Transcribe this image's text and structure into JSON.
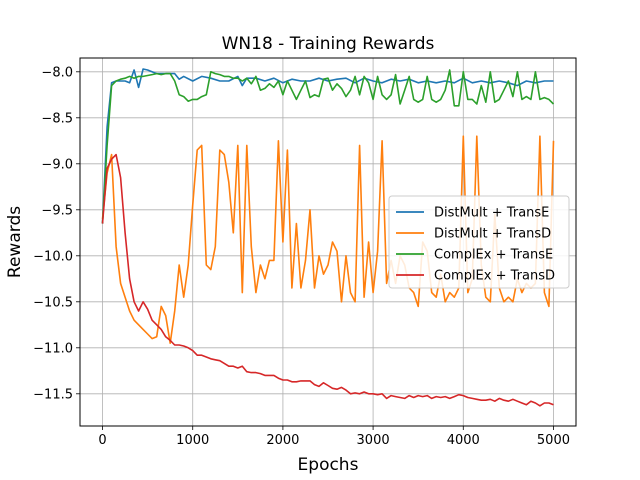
{
  "chart_data": {
    "type": "line",
    "title": "WN18 - Training Rewards",
    "xlabel": "Epochs",
    "ylabel": "Rewards",
    "xlim": [
      -250,
      5250
    ],
    "ylim": [
      -11.85,
      -7.85
    ],
    "xticks": [
      0,
      1000,
      2000,
      3000,
      4000,
      5000
    ],
    "xtick_labels": [
      "0",
      "1000",
      "2000",
      "3000",
      "4000",
      "5000"
    ],
    "yticks": [
      -8.0,
      -8.5,
      -9.0,
      -9.5,
      -10.0,
      -10.5,
      -11.0,
      -11.5
    ],
    "ytick_labels": [
      "−8.0",
      "−8.5",
      "−9.0",
      "−9.5",
      "−10.0",
      "−10.5",
      "−11.0",
      "−11.5"
    ],
    "grid": true,
    "legend_position": "center-right",
    "series": [
      {
        "name": "DistMult + TransE",
        "color": "#1f77b4",
        "x": [
          0,
          50,
          100,
          150,
          200,
          250,
          300,
          350,
          400,
          450,
          500,
          600,
          700,
          800,
          850,
          900,
          1000,
          1100,
          1200,
          1300,
          1400,
          1500,
          1550,
          1600,
          1700,
          1800,
          1900,
          2000,
          2100,
          2200,
          2300,
          2400,
          2500,
          2600,
          2700,
          2800,
          2900,
          3000,
          3100,
          3200,
          3300,
          3400,
          3500,
          3600,
          3700,
          3800,
          3900,
          4000,
          4100,
          4200,
          4300,
          4400,
          4500,
          4600,
          4700,
          4800,
          4900,
          5000
        ],
        "y": [
          -9.65,
          -8.6,
          -8.12,
          -8.1,
          -8.1,
          -8.1,
          -8.12,
          -7.98,
          -8.17,
          -7.97,
          -7.98,
          -8.02,
          -8.02,
          -8.02,
          -8.08,
          -8.05,
          -8.1,
          -8.05,
          -8.07,
          -8.1,
          -8.1,
          -8.05,
          -8.15,
          -8.07,
          -8.07,
          -8.1,
          -8.07,
          -8.12,
          -8.08,
          -8.1,
          -8.1,
          -8.07,
          -8.1,
          -8.08,
          -8.07,
          -8.12,
          -8.07,
          -8.1,
          -8.12,
          -8.08,
          -8.1,
          -8.08,
          -8.12,
          -8.1,
          -8.12,
          -8.1,
          -8.12,
          -8.07,
          -8.12,
          -8.1,
          -8.12,
          -8.1,
          -8.12,
          -8.15,
          -8.1,
          -8.12,
          -8.1,
          -8.1
        ]
      },
      {
        "name": "DistMult + TransD",
        "color": "#ff7f0e",
        "x": [
          0,
          50,
          100,
          150,
          200,
          250,
          300,
          350,
          400,
          450,
          500,
          550,
          600,
          650,
          700,
          750,
          800,
          850,
          900,
          950,
          1000,
          1050,
          1100,
          1150,
          1200,
          1250,
          1300,
          1350,
          1400,
          1450,
          1500,
          1550,
          1600,
          1650,
          1700,
          1750,
          1800,
          1850,
          1900,
          1950,
          2000,
          2050,
          2100,
          2150,
          2200,
          2250,
          2300,
          2350,
          2400,
          2450,
          2500,
          2550,
          2600,
          2650,
          2700,
          2750,
          2800,
          2850,
          2900,
          2950,
          3000,
          3050,
          3100,
          3150,
          3200,
          3250,
          3300,
          3350,
          3400,
          3450,
          3500,
          3550,
          3600,
          3650,
          3700,
          3750,
          3800,
          3850,
          3900,
          3950,
          4000,
          4050,
          4100,
          4150,
          4200,
          4250,
          4300,
          4350,
          4400,
          4450,
          4500,
          4550,
          4600,
          4650,
          4700,
          4750,
          4800,
          4850,
          4900,
          4950,
          5000
        ],
        "y": [
          -9.6,
          -9.1,
          -8.9,
          -9.9,
          -10.3,
          -10.45,
          -10.6,
          -10.7,
          -10.75,
          -10.8,
          -10.85,
          -10.9,
          -10.88,
          -10.55,
          -10.65,
          -10.95,
          -10.6,
          -10.1,
          -10.45,
          -10.1,
          -9.45,
          -8.85,
          -8.8,
          -10.1,
          -10.15,
          -9.9,
          -8.85,
          -8.9,
          -9.2,
          -9.75,
          -8.8,
          -10.4,
          -8.8,
          -9.9,
          -10.4,
          -10.1,
          -10.25,
          -10.05,
          -10.05,
          -8.75,
          -9.85,
          -8.85,
          -10.35,
          -9.65,
          -10.35,
          -10.05,
          -9.5,
          -10.35,
          -10.0,
          -10.2,
          -10.1,
          -9.85,
          -9.95,
          -10.5,
          -10.0,
          -10.4,
          -10.5,
          -8.8,
          -10.45,
          -9.85,
          -10.4,
          -9.95,
          -8.75,
          -10.3,
          -10.05,
          -10.3,
          -10.0,
          -10.1,
          -10.35,
          -10.4,
          -10.55,
          -9.85,
          -9.95,
          -10.4,
          -10.45,
          -10.2,
          -10.5,
          -10.4,
          -10.45,
          -10.35,
          -8.7,
          -10.4,
          -10.25,
          -8.7,
          -10.1,
          -10.45,
          -10.5,
          -9.55,
          -10.35,
          -10.5,
          -10.45,
          -10.5,
          -10.25,
          -10.4,
          -10.3,
          -10.35,
          -10.3,
          -8.7,
          -10.4,
          -10.55,
          -8.75
        ]
      },
      {
        "name": "ComplEx + TransE",
        "color": "#2ca02c",
        "x": [
          0,
          50,
          100,
          150,
          200,
          250,
          300,
          350,
          400,
          450,
          500,
          550,
          600,
          650,
          700,
          750,
          800,
          850,
          900,
          950,
          1000,
          1050,
          1100,
          1150,
          1200,
          1250,
          1300,
          1350,
          1400,
          1450,
          1500,
          1550,
          1600,
          1650,
          1700,
          1750,
          1800,
          1850,
          1900,
          1950,
          2000,
          2050,
          2100,
          2150,
          2200,
          2250,
          2300,
          2350,
          2400,
          2450,
          2500,
          2550,
          2600,
          2650,
          2700,
          2750,
          2800,
          2850,
          2900,
          2950,
          3000,
          3050,
          3100,
          3150,
          3200,
          3250,
          3300,
          3350,
          3400,
          3450,
          3500,
          3550,
          3600,
          3650,
          3700,
          3750,
          3800,
          3850,
          3900,
          3950,
          4000,
          4050,
          4100,
          4150,
          4200,
          4250,
          4300,
          4350,
          4400,
          4450,
          4500,
          4550,
          4600,
          4650,
          4700,
          4750,
          4800,
          4850,
          4900,
          4950,
          5000
        ],
        "y": [
          -9.65,
          -8.8,
          -8.15,
          -8.1,
          -8.08,
          -8.07,
          -8.05,
          -8.07,
          -8.05,
          -8.05,
          -8.04,
          -8.03,
          -8.02,
          -8.03,
          -8.02,
          -8.02,
          -8.1,
          -8.25,
          -8.27,
          -8.32,
          -8.3,
          -8.3,
          -8.27,
          -8.25,
          -8.0,
          -8.02,
          -8.03,
          -8.05,
          -8.05,
          -8.07,
          -8.07,
          -8.1,
          -8.07,
          -8.13,
          -8.05,
          -8.2,
          -8.18,
          -8.13,
          -8.17,
          -8.1,
          -8.25,
          -8.1,
          -8.2,
          -8.3,
          -8.2,
          -8.1,
          -8.28,
          -8.25,
          -8.27,
          -8.08,
          -8.07,
          -8.2,
          -8.13,
          -8.18,
          -8.27,
          -8.2,
          -8.05,
          -8.25,
          -8.05,
          -8.12,
          -8.3,
          -8.05,
          -8.25,
          -8.3,
          -8.25,
          -8.03,
          -8.35,
          -8.2,
          -8.05,
          -8.3,
          -8.33,
          -8.3,
          -8.05,
          -8.3,
          -8.33,
          -8.3,
          -8.2,
          -7.98,
          -8.37,
          -8.37,
          -8.0,
          -8.3,
          -8.3,
          -8.35,
          -8.15,
          -8.33,
          -8.0,
          -8.33,
          -8.3,
          -8.2,
          -8.1,
          -8.27,
          -8.0,
          -8.3,
          -8.27,
          -8.3,
          -8.0,
          -8.3,
          -8.28,
          -8.3,
          -8.35
        ]
      },
      {
        "name": "ComplEx + TransD",
        "color": "#d62728",
        "x": [
          0,
          50,
          100,
          150,
          200,
          250,
          300,
          350,
          400,
          450,
          500,
          550,
          600,
          650,
          700,
          750,
          800,
          850,
          900,
          950,
          1000,
          1050,
          1100,
          1150,
          1200,
          1250,
          1300,
          1350,
          1400,
          1450,
          1500,
          1550,
          1600,
          1650,
          1700,
          1750,
          1800,
          1850,
          1900,
          1950,
          2000,
          2050,
          2100,
          2150,
          2200,
          2250,
          2300,
          2350,
          2400,
          2450,
          2500,
          2550,
          2600,
          2650,
          2700,
          2750,
          2800,
          2850,
          2900,
          2950,
          3000,
          3050,
          3100,
          3150,
          3200,
          3250,
          3300,
          3350,
          3400,
          3450,
          3500,
          3550,
          3600,
          3650,
          3700,
          3750,
          3800,
          3850,
          3900,
          3950,
          4000,
          4050,
          4100,
          4150,
          4200,
          4250,
          4300,
          4350,
          4400,
          4450,
          4500,
          4550,
          4600,
          4650,
          4700,
          4750,
          4800,
          4850,
          4900,
          4950,
          5000
        ],
        "y": [
          -9.65,
          -9.05,
          -8.95,
          -8.9,
          -9.15,
          -9.75,
          -10.25,
          -10.5,
          -10.6,
          -10.5,
          -10.58,
          -10.7,
          -10.75,
          -10.8,
          -10.88,
          -10.92,
          -10.97,
          -10.97,
          -10.98,
          -11.0,
          -11.03,
          -11.08,
          -11.08,
          -11.1,
          -11.12,
          -11.13,
          -11.14,
          -11.17,
          -11.2,
          -11.2,
          -11.22,
          -11.2,
          -11.26,
          -11.27,
          -11.27,
          -11.28,
          -11.3,
          -11.3,
          -11.3,
          -11.33,
          -11.35,
          -11.35,
          -11.37,
          -11.37,
          -11.36,
          -11.36,
          -11.36,
          -11.4,
          -11.42,
          -11.38,
          -11.41,
          -11.44,
          -11.45,
          -11.43,
          -11.46,
          -11.5,
          -11.49,
          -11.5,
          -11.48,
          -11.5,
          -11.5,
          -11.51,
          -11.5,
          -11.55,
          -11.52,
          -11.53,
          -11.54,
          -11.55,
          -11.52,
          -11.54,
          -11.52,
          -11.53,
          -11.52,
          -11.55,
          -11.53,
          -11.54,
          -11.53,
          -11.55,
          -11.53,
          -11.51,
          -11.52,
          -11.54,
          -11.55,
          -11.56,
          -11.57,
          -11.57,
          -11.56,
          -11.58,
          -11.55,
          -11.57,
          -11.58,
          -11.56,
          -11.58,
          -11.6,
          -11.62,
          -11.58,
          -11.6,
          -11.63,
          -11.6,
          -11.6,
          -11.62
        ]
      }
    ]
  }
}
